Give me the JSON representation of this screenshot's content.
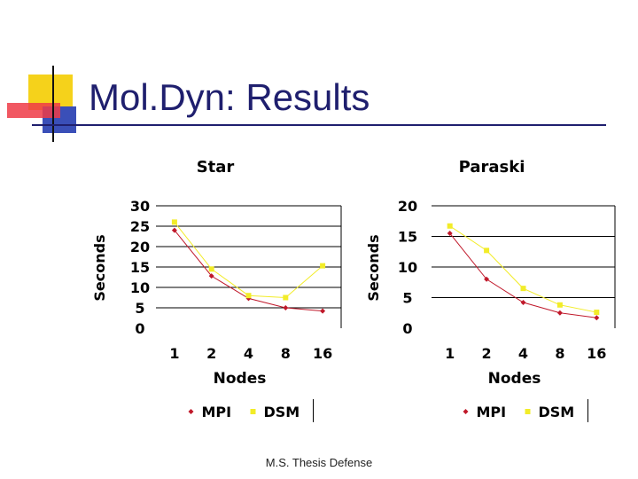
{
  "slide": {
    "title": "Mol.Dyn: Results",
    "footer": "M.S. Thesis Defense"
  },
  "colors": {
    "title": "#1f1f6e",
    "mpi": "#c0182a",
    "dsm": "#f2ec28",
    "logo_yellow": "#f5d21b",
    "logo_red": "#ee3b46",
    "logo_blue": "#3a4fb8"
  },
  "chart_data": [
    {
      "type": "line",
      "title": "Star",
      "xlabel": "Nodes",
      "ylabel": "Seconds",
      "categories": [
        "1",
        "2",
        "4",
        "8",
        "16"
      ],
      "yticks": [
        "0",
        "5",
        "10",
        "15",
        "20",
        "25",
        "30"
      ],
      "ylim": [
        0,
        30
      ],
      "grid": "horizontal",
      "legend_position": "bottom",
      "series": [
        {
          "name": "MPI",
          "values": [
            24,
            12.8,
            7.3,
            5,
            4.2
          ],
          "color": "#c0182a",
          "marker": "diamond"
        },
        {
          "name": "DSM",
          "values": [
            26,
            14.5,
            8,
            7.5,
            15.3
          ],
          "color": "#f2ec28",
          "marker": "square"
        }
      ]
    },
    {
      "type": "line",
      "title": "Paraski",
      "xlabel": "Nodes",
      "ylabel": "Seconds",
      "categories": [
        "1",
        "2",
        "4",
        "8",
        "16"
      ],
      "yticks": [
        "0",
        "5",
        "10",
        "15",
        "20"
      ],
      "ylim": [
        0,
        20
      ],
      "grid": "horizontal",
      "legend_position": "bottom",
      "series": [
        {
          "name": "MPI",
          "values": [
            15.5,
            8,
            4.2,
            2.5,
            1.7
          ],
          "color": "#c0182a",
          "marker": "diamond"
        },
        {
          "name": "DSM",
          "values": [
            16.7,
            12.7,
            6.5,
            3.8,
            2.6
          ],
          "color": "#f2ec28",
          "marker": "square"
        }
      ]
    }
  ]
}
